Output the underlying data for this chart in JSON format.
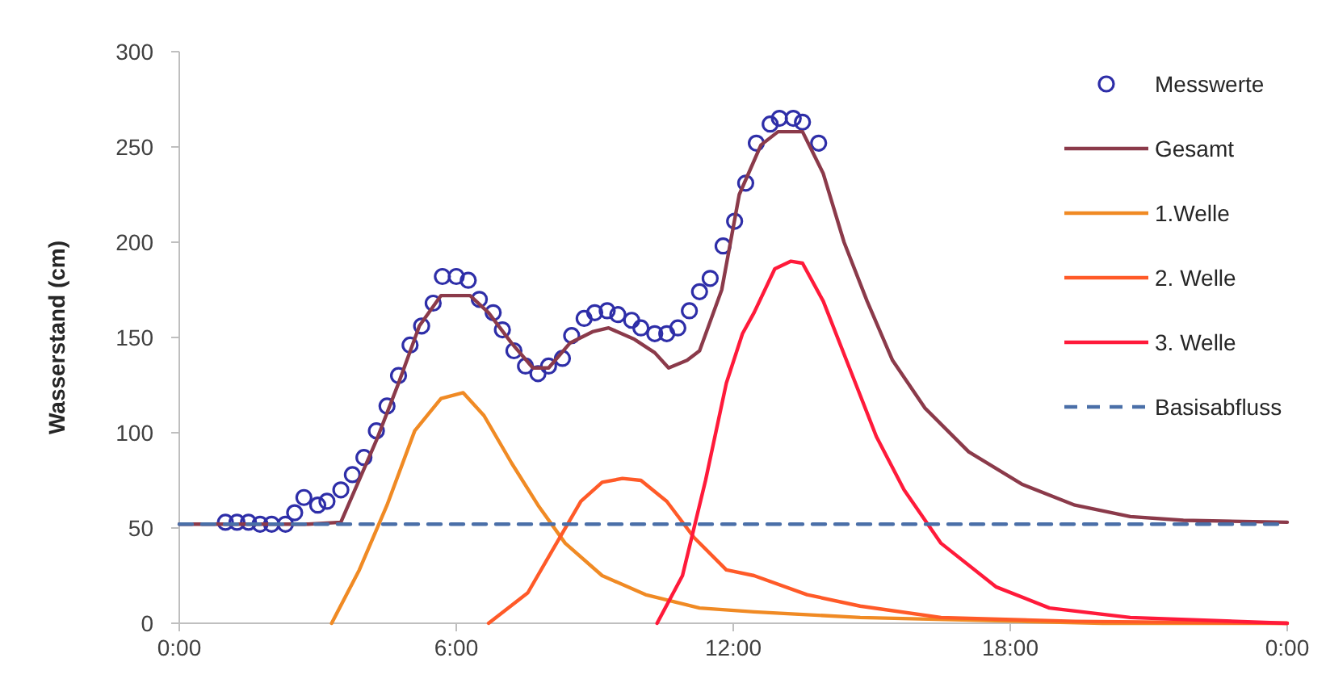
{
  "chart_data": {
    "type": "line",
    "ylabel": "Wasserstand (cm)",
    "xlim": [
      0,
      24
    ],
    "xticks": [
      {
        "value": 0,
        "label": "0:00"
      },
      {
        "value": 6,
        "label": "6:00"
      },
      {
        "value": 12,
        "label": "12:00"
      },
      {
        "value": 18,
        "label": "18:00"
      },
      {
        "value": 24,
        "label": "0:00"
      }
    ],
    "ylim": [
      0,
      300
    ],
    "yticks": [
      0,
      50,
      100,
      150,
      200,
      250,
      300
    ],
    "grid": false,
    "legend": "top right",
    "series": [
      {
        "name": "Messwerte",
        "type": "scatter",
        "marker": "circle",
        "color": "#2e2ea8",
        "x": [
          1.0,
          1.25,
          1.5,
          1.75,
          2.0,
          2.3,
          2.5,
          2.7,
          3.0,
          3.2,
          3.5,
          3.75,
          4.0,
          4.27,
          4.5,
          4.75,
          5.0,
          5.25,
          5.5,
          5.7,
          6.0,
          6.26,
          6.5,
          6.8,
          7.0,
          7.25,
          7.5,
          7.77,
          8.0,
          8.3,
          8.5,
          8.77,
          9.0,
          9.27,
          9.5,
          9.8,
          10.0,
          10.3,
          10.56,
          10.8,
          11.05,
          11.27,
          11.5,
          11.78,
          12.03,
          12.27,
          12.5,
          12.8,
          13.0,
          13.3,
          13.5,
          13.85
        ],
        "values": [
          53,
          53,
          53,
          52,
          52,
          52,
          58,
          66,
          62,
          64,
          70,
          78,
          87,
          101,
          114,
          130,
          146,
          156,
          168,
          182,
          182,
          180,
          170,
          163,
          154,
          143,
          135,
          131,
          135,
          139,
          151,
          160,
          163,
          164,
          162,
          159,
          155,
          152,
          152,
          155,
          164,
          174,
          181,
          198,
          211,
          231,
          252,
          262,
          265,
          265,
          263,
          252
        ]
      },
      {
        "name": "Gesamt",
        "color": "#8b3a4a",
        "marker": "none",
        "line_style": "solid",
        "x": [
          0,
          2.8,
          3.5,
          4.27,
          4.75,
          5.2,
          5.67,
          6.3,
          6.7,
          7.2,
          7.66,
          8.0,
          8.46,
          8.95,
          9.3,
          9.86,
          10.3,
          10.6,
          11.0,
          11.27,
          11.75,
          12.13,
          12.6,
          12.97,
          13.5,
          13.95,
          14.4,
          14.9,
          15.45,
          16.15,
          17.1,
          18.25,
          19.4,
          20.6,
          21.75,
          24
        ],
        "values": [
          52,
          52,
          53,
          96,
          126,
          156,
          172,
          172,
          163,
          147,
          134,
          134,
          147,
          153,
          155,
          149,
          142,
          134,
          138,
          143,
          175,
          225,
          251,
          258,
          258,
          236,
          200,
          169,
          138,
          113,
          90,
          73,
          62,
          56,
          54,
          53
        ]
      },
      {
        "name": "1.Welle",
        "color": "#f08a24",
        "marker": "none",
        "line_style": "solid",
        "x": [
          3.3,
          3.9,
          4.5,
          5.1,
          5.67,
          6.15,
          6.6,
          7.2,
          7.77,
          8.36,
          9.16,
          10.1,
          11.27,
          12.45,
          14.75,
          18.25,
          20,
          24
        ],
        "values": [
          0,
          28,
          62,
          101,
          118,
          121,
          109,
          84,
          62,
          42,
          25,
          15,
          8,
          6,
          3,
          1,
          0,
          0
        ]
      },
      {
        "name": "2. Welle",
        "color": "#ff5a28",
        "marker": "none",
        "line_style": "solid",
        "x": [
          6.7,
          7.55,
          8.1,
          8.7,
          9.16,
          9.6,
          10.0,
          10.56,
          11.15,
          11.85,
          12.45,
          13.6,
          14.75,
          16.5,
          19.4,
          24
        ],
        "values": [
          0,
          16,
          39,
          64,
          74,
          76,
          75,
          64,
          45,
          28,
          25,
          15,
          9,
          3,
          1,
          0
        ]
      },
      {
        "name": "3. Welle",
        "color": "#ff1a3a",
        "marker": "none",
        "line_style": "solid",
        "x": [
          10.35,
          10.9,
          11.4,
          11.85,
          12.2,
          12.45,
          12.9,
          13.25,
          13.5,
          13.95,
          14.55,
          15.1,
          15.7,
          16.5,
          17.7,
          18.85,
          20.6,
          24
        ],
        "values": [
          0,
          25,
          75,
          126,
          152,
          163,
          186,
          190,
          189,
          169,
          132,
          98,
          70,
          42,
          19,
          8,
          3,
          0
        ]
      },
      {
        "name": "Basisabfluss",
        "color": "#4a6fa8",
        "marker": "none",
        "line_style": "dashed",
        "x": [
          0,
          24
        ],
        "values": [
          52,
          52
        ]
      }
    ]
  }
}
